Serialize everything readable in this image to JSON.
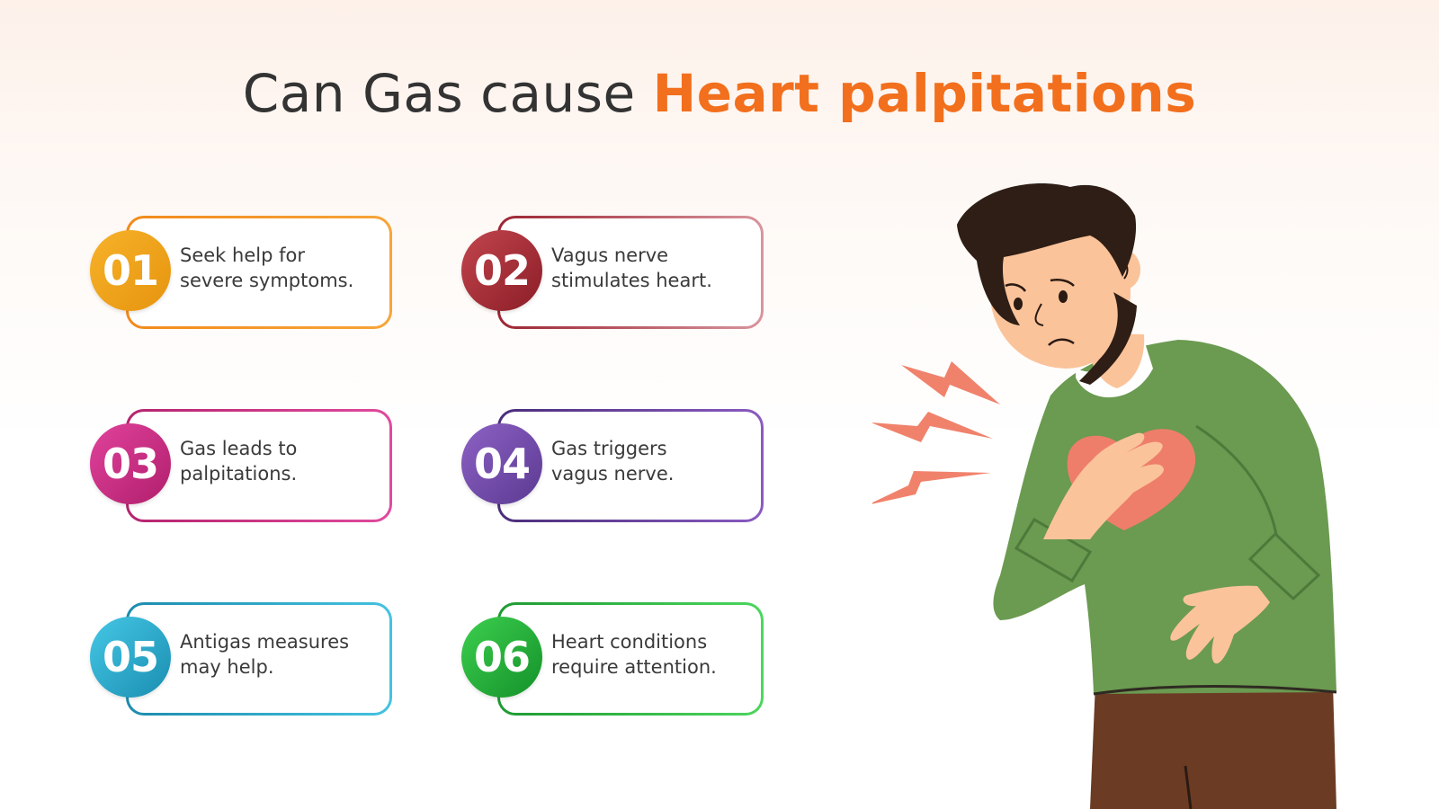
{
  "title": {
    "prefix": "Can Gas cause",
    "highlight": "Heart palpitations"
  },
  "cards": [
    {
      "number": "01",
      "line1": "Seek help for",
      "line2": "severe symptoms.",
      "color": "#f39a1f"
    },
    {
      "number": "02",
      "line1": "Vagus nerve",
      "line2": "stimulates heart.",
      "color": "#a52a36"
    },
    {
      "number": "03",
      "line1": "Gas leads to",
      "line2": "palpitations.",
      "color": "#c7287f"
    },
    {
      "number": "04",
      "line1": "Gas triggers",
      "line2": "vagus nerve.",
      "color": "#6a459f"
    },
    {
      "number": "05",
      "line1": "Antigas measures",
      "line2": "may help.",
      "color": "#2aa6c8"
    },
    {
      "number": "06",
      "line1": "Heart conditions",
      "line2": "require attention.",
      "color": "#25b23c"
    }
  ],
  "colors": {
    "accent": "#f26f1d",
    "title_text": "#333333",
    "shirt": "#6b9a51",
    "heart": "#ee7e6a",
    "pants": "#6b3b24"
  }
}
